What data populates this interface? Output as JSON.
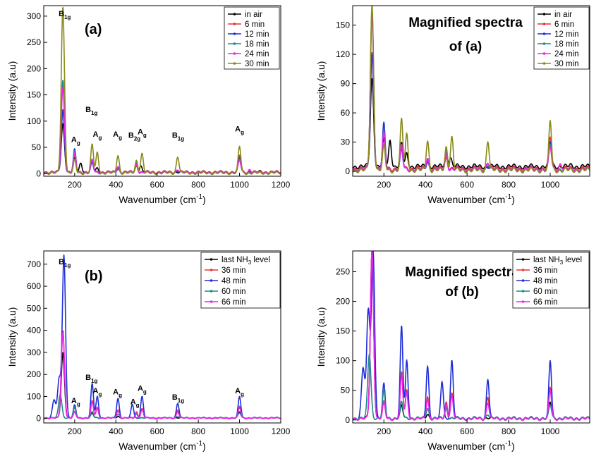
{
  "chart_data": [
    {
      "id": "a",
      "type": "line",
      "panel_label": "(a)",
      "xlabel": "Wavenumber (cm",
      "xlabel_sup": "-1",
      "xlabel_end": ")",
      "ylabel": "Intensity (a.u)",
      "xlim": [
        50,
        1200
      ],
      "ylim": [
        -5,
        320
      ],
      "xticks": [
        200,
        400,
        600,
        800,
        1000,
        1200
      ],
      "yticks": [
        0,
        50,
        100,
        150,
        200,
        250,
        300
      ],
      "legend": [
        "in air",
        "6 min",
        "12 min",
        "18 min",
        "24 min",
        "30 min"
      ],
      "peak_labels": [
        {
          "base": "B",
          "sub": "1g",
          "x": 152,
          "y": 300
        },
        {
          "base": "A",
          "sub": "g",
          "x": 205,
          "y": 60
        },
        {
          "base": "B",
          "sub": "1g",
          "x": 282,
          "y": 117
        },
        {
          "base": "A",
          "sub": "g",
          "x": 310,
          "y": 70
        },
        {
          "base": "A",
          "sub": "g",
          "x": 408,
          "y": 70
        },
        {
          "base": "B",
          "sub": "2g",
          "x": 490,
          "y": 68
        },
        {
          "base": "A",
          "sub": "g",
          "x": 527,
          "y": 75
        },
        {
          "base": "B",
          "sub": "1g",
          "x": 702,
          "y": 68
        },
        {
          "base": "A",
          "sub": "g",
          "x": 1000,
          "y": 80
        }
      ],
      "series": [
        {
          "name": "in air",
          "color": "#000000",
          "peaks": [
            [
              143,
              95
            ],
            [
              200,
              28
            ],
            [
              230,
              20
            ],
            [
              285,
              24
            ],
            [
              310,
              10
            ],
            [
              410,
              10
            ],
            [
              500,
              18
            ],
            [
              520,
              15
            ],
            [
              800,
              3
            ],
            [
              1000,
              30
            ],
            [
              1100,
              4
            ]
          ],
          "base": 3
        },
        {
          "name": "6 min",
          "color": "#e8352e",
          "peaks": [
            [
              143,
              122
            ],
            [
              200,
              35
            ],
            [
              285,
              22
            ],
            [
              410,
              14
            ],
            [
              500,
              14
            ],
            [
              700,
              8
            ],
            [
              1000,
              35
            ],
            [
              1050,
              5
            ]
          ],
          "base": 3
        },
        {
          "name": "12 min",
          "color": "#1f2fd8",
          "peaks": [
            [
              143,
              120
            ],
            [
              200,
              45
            ],
            [
              285,
              20
            ],
            [
              410,
              10
            ],
            [
              500,
              18
            ],
            [
              700,
              6
            ],
            [
              1000,
              30
            ]
          ],
          "base": 2
        },
        {
          "name": "18 min",
          "color": "#1e8a8a",
          "peaks": [
            [
              143,
              178
            ],
            [
              200,
              42
            ],
            [
              285,
              25
            ],
            [
              410,
              12
            ],
            [
              500,
              22
            ],
            [
              700,
              8
            ],
            [
              1000,
              28
            ]
          ],
          "base": 2
        },
        {
          "name": "24 min",
          "color": "#ee22ee",
          "peaks": [
            [
              143,
              165
            ],
            [
              200,
              38
            ],
            [
              285,
              26
            ],
            [
              410,
              14
            ],
            [
              500,
              18
            ],
            [
              700,
              8
            ],
            [
              1000,
              25
            ],
            [
              1050,
              8
            ]
          ],
          "base": 2
        },
        {
          "name": "30 min",
          "color": "#8a8a1c",
          "peaks": [
            [
              143,
              318
            ],
            [
              200,
              25
            ],
            [
              285,
              55
            ],
            [
              310,
              40
            ],
            [
              410,
              35
            ],
            [
              500,
              25
            ],
            [
              527,
              38
            ],
            [
              700,
              33
            ],
            [
              1000,
              52
            ]
          ],
          "base": 1
        }
      ]
    },
    {
      "id": "a-mag",
      "type": "line",
      "panel_label": "Magnified spectra of (a)",
      "title_line1": "Magnified spectra",
      "title_line2": "of (a)",
      "xlabel": "Wavenumber (cm",
      "xlabel_sup": "-1",
      "xlabel_end": ")",
      "ylabel": "Intensity (a.u)",
      "xlim": [
        50,
        1190
      ],
      "ylim": [
        -5,
        170
      ],
      "xticks": [
        200,
        400,
        600,
        800,
        1000
      ],
      "yticks": [
        0,
        30,
        60,
        90,
        120,
        150
      ],
      "legend": [
        "in air",
        "6 min",
        "12 min",
        "18 min",
        "24 min",
        "30 min"
      ],
      "series": [
        {
          "name": "in air",
          "color": "#000000",
          "peaks": [
            [
              143,
              95
            ],
            [
              200,
              32
            ],
            [
              230,
              32
            ],
            [
              285,
              28
            ],
            [
              310,
              18
            ],
            [
              410,
              12
            ],
            [
              500,
              20
            ],
            [
              520,
              14
            ],
            [
              800,
              5
            ],
            [
              1000,
              30
            ],
            [
              1100,
              6
            ]
          ],
          "base": 5
        },
        {
          "name": "6 min",
          "color": "#e8352e",
          "peaks": [
            [
              143,
              122
            ],
            [
              200,
              40
            ],
            [
              285,
              25
            ],
            [
              410,
              14
            ],
            [
              500,
              14
            ],
            [
              700,
              8
            ],
            [
              1000,
              35
            ],
            [
              1050,
              6
            ]
          ],
          "base": 3
        },
        {
          "name": "12 min",
          "color": "#1f2fd8",
          "peaks": [
            [
              143,
              120
            ],
            [
              200,
              48
            ],
            [
              285,
              22
            ],
            [
              410,
              10
            ],
            [
              500,
              18
            ],
            [
              700,
              6
            ],
            [
              1000,
              30
            ]
          ],
          "base": 2
        },
        {
          "name": "18 min",
          "color": "#1e8a8a",
          "peaks": [
            [
              143,
              165
            ],
            [
              200,
              40
            ],
            [
              285,
              25
            ],
            [
              410,
              12
            ],
            [
              500,
              22
            ],
            [
              700,
              8
            ],
            [
              1000,
              28
            ]
          ],
          "base": 2
        },
        {
          "name": "24 min",
          "color": "#ee22ee",
          "peaks": [
            [
              143,
              160
            ],
            [
              200,
              38
            ],
            [
              285,
              26
            ],
            [
              410,
              14
            ],
            [
              500,
              18
            ],
            [
              700,
              10
            ],
            [
              1000,
              25
            ],
            [
              1050,
              8
            ]
          ],
          "base": 2
        },
        {
          "name": "30 min",
          "color": "#8a8a1c",
          "peaks": [
            [
              143,
              170
            ],
            [
              200,
              25
            ],
            [
              285,
              53
            ],
            [
              310,
              38
            ],
            [
              410,
              32
            ],
            [
              500,
              25
            ],
            [
              527,
              35
            ],
            [
              700,
              32
            ],
            [
              1000,
              52
            ]
          ],
          "base": 1
        }
      ]
    },
    {
      "id": "b",
      "type": "line",
      "panel_label": "(b)",
      "xlabel": "Wavenumber (cm",
      "xlabel_sup": "-1",
      "xlabel_end": ")",
      "ylabel": "Intensity (a.u)",
      "xlim": [
        50,
        1200
      ],
      "ylim": [
        -20,
        760
      ],
      "xticks": [
        200,
        400,
        600,
        800,
        1000,
        1200
      ],
      "yticks": [
        0,
        100,
        200,
        300,
        400,
        500,
        600,
        700
      ],
      "legend": [
        "last NH3 level",
        "36 min",
        "48 min",
        "60 min",
        "66 min"
      ],
      "peak_labels": [
        {
          "base": "B",
          "sub": "1g",
          "x": 152,
          "y": 700
        },
        {
          "base": "A",
          "sub": "g",
          "x": 205,
          "y": 70
        },
        {
          "base": "B",
          "sub": "1g",
          "x": 282,
          "y": 175
        },
        {
          "base": "A",
          "sub": "g",
          "x": 310,
          "y": 115
        },
        {
          "base": "A",
          "sub": "g",
          "x": 408,
          "y": 110
        },
        {
          "base": "A",
          "sub": "g",
          "x": 492,
          "y": 65
        },
        {
          "base": "A",
          "sub": "g",
          "x": 527,
          "y": 125
        },
        {
          "base": "B",
          "sub": "1g",
          "x": 702,
          "y": 85
        },
        {
          "base": "A",
          "sub": "g",
          "x": 1000,
          "y": 115
        }
      ],
      "series": [
        {
          "name": "last NH3 level",
          "color": "#000000",
          "peaks": [
            [
              143,
              300
            ],
            [
              200,
              28
            ],
            [
              285,
              24
            ],
            [
              410,
              10
            ],
            [
              500,
              20
            ],
            [
              700,
              4
            ],
            [
              1000,
              30
            ]
          ],
          "base": 3
        },
        {
          "name": "36 min",
          "color": "#e8352e",
          "peaks": [
            [
              143,
              400
            ],
            [
              200,
              30
            ],
            [
              285,
              80
            ],
            [
              310,
              50
            ],
            [
              410,
              40
            ],
            [
              500,
              30
            ],
            [
              527,
              45
            ],
            [
              700,
              40
            ],
            [
              1000,
              55
            ]
          ],
          "base": 2
        },
        {
          "name": "48 min",
          "color": "#1f2fd8",
          "peaks": [
            [
              100,
              85
            ],
            [
              125,
              180
            ],
            [
              148,
              740
            ],
            [
              200,
              60
            ],
            [
              285,
              158
            ],
            [
              310,
              100
            ],
            [
              410,
              92
            ],
            [
              480,
              65
            ],
            [
              527,
              100
            ],
            [
              700,
              70
            ],
            [
              1000,
              100
            ]
          ],
          "base": 2
        },
        {
          "name": "60 min",
          "color": "#1e8a8a",
          "peaks": [
            [
              130,
              110
            ],
            [
              200,
              48
            ],
            [
              285,
              30
            ],
            [
              410,
              20
            ],
            [
              500,
              20
            ],
            [
              700,
              10
            ],
            [
              1000,
              25
            ]
          ],
          "base": 3
        },
        {
          "name": "66 min",
          "color": "#ee22ee",
          "peaks": [
            [
              143,
              390
            ],
            [
              200,
              28
            ],
            [
              285,
              75
            ],
            [
              310,
              45
            ],
            [
              410,
              35
            ],
            [
              500,
              25
            ],
            [
              527,
              40
            ],
            [
              700,
              30
            ],
            [
              1000,
              50
            ]
          ],
          "base": 2
        }
      ]
    },
    {
      "id": "b-mag",
      "type": "line",
      "panel_label": "Magnified spectra of (b)",
      "title_line1": "Magnified spectra",
      "title_line2": "of (b)",
      "xlabel": "Wavenumber (cm",
      "xlabel_sup": "-1",
      "xlabel_end": ")",
      "ylabel": "Intensity (a.u)",
      "xlim": [
        50,
        1190
      ],
      "ylim": [
        -5,
        285
      ],
      "xticks": [
        200,
        400,
        600,
        800,
        1000
      ],
      "yticks": [
        0,
        50,
        100,
        150,
        200,
        250
      ],
      "legend": [
        "last NH3 level",
        "36 min",
        "48 min",
        "60 min",
        "66 min"
      ],
      "series": [
        {
          "name": "last NH3 level",
          "color": "#000000",
          "peaks": [
            [
              143,
              285
            ],
            [
              200,
              28
            ],
            [
              285,
              24
            ],
            [
              410,
              10
            ],
            [
              500,
              20
            ],
            [
              700,
              4
            ],
            [
              1000,
              30
            ]
          ],
          "base": 3
        },
        {
          "name": "36 min",
          "color": "#e8352e",
          "peaks": [
            [
              143,
              285
            ],
            [
              200,
              30
            ],
            [
              285,
              80
            ],
            [
              310,
              50
            ],
            [
              410,
              40
            ],
            [
              500,
              30
            ],
            [
              527,
              45
            ],
            [
              700,
              40
            ],
            [
              1000,
              55
            ]
          ],
          "base": 2
        },
        {
          "name": "48 min",
          "color": "#1f2fd8",
          "peaks": [
            [
              100,
              88
            ],
            [
              125,
              185
            ],
            [
              148,
              285
            ],
            [
              200,
              60
            ],
            [
              285,
              158
            ],
            [
              310,
              100
            ],
            [
              410,
              92
            ],
            [
              480,
              65
            ],
            [
              527,
              100
            ],
            [
              700,
              70
            ],
            [
              1000,
              100
            ]
          ],
          "base": 2
        },
        {
          "name": "60 min",
          "color": "#1e8a8a",
          "peaks": [
            [
              130,
              112
            ],
            [
              200,
              48
            ],
            [
              285,
              30
            ],
            [
              410,
              20
            ],
            [
              500,
              20
            ],
            [
              700,
              10
            ],
            [
              1000,
              25
            ]
          ],
          "base": 3
        },
        {
          "name": "66 min",
          "color": "#ee22ee",
          "peaks": [
            [
              143,
              285
            ],
            [
              200,
              28
            ],
            [
              285,
              75
            ],
            [
              310,
              45
            ],
            [
              410,
              35
            ],
            [
              500,
              25
            ],
            [
              527,
              40
            ],
            [
              700,
              30
            ],
            [
              1000,
              50
            ]
          ],
          "base": 2
        }
      ]
    }
  ]
}
